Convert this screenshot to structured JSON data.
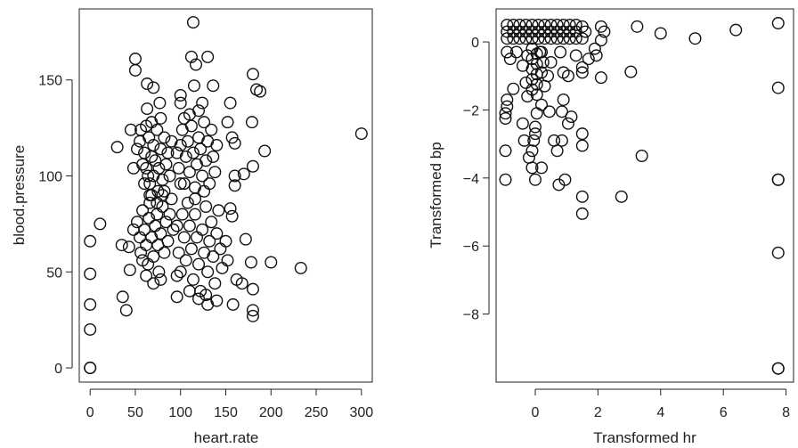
{
  "chart_data": [
    {
      "type": "scatter",
      "title": "",
      "xlabel": "heart.rate",
      "ylabel": "blood.pressure",
      "xlim": [
        -12,
        312
      ],
      "ylim": [
        -7.4,
        187
      ],
      "xticks": [
        0,
        50,
        100,
        150,
        200,
        250,
        300
      ],
      "xtick_labels": [
        "0",
        "50",
        "100",
        "150",
        "200",
        "250",
        "300"
      ],
      "yticks": [
        0,
        50,
        100,
        150
      ],
      "ytick_labels": [
        "0",
        "50",
        "100",
        "150"
      ],
      "grid": false,
      "marker": "open-circle",
      "points": [
        [
          55,
          118
        ],
        [
          60,
          112
        ],
        [
          62,
          104
        ],
        [
          65,
          120
        ],
        [
          66,
          96
        ],
        [
          68,
          110
        ],
        [
          70,
          100
        ],
        [
          70,
          116
        ],
        [
          72,
          108
        ],
        [
          74,
          124
        ],
        [
          75,
          92
        ],
        [
          76,
          104
        ],
        [
          78,
          114
        ],
        [
          80,
          98
        ],
        [
          82,
          120
        ],
        [
          84,
          106
        ],
        [
          86,
          112
        ],
        [
          64,
          100
        ],
        [
          58,
          106
        ],
        [
          56,
          124
        ],
        [
          62,
          126
        ],
        [
          68,
          128
        ],
        [
          78,
          130
        ],
        [
          88,
          100
        ],
        [
          90,
          118
        ],
        [
          66,
          90
        ],
        [
          74,
          86
        ],
        [
          82,
          92
        ],
        [
          52,
          114
        ],
        [
          60,
          96
        ],
        [
          98,
          104
        ],
        [
          100,
          116
        ],
        [
          102,
          124
        ],
        [
          104,
          96
        ],
        [
          106,
          110
        ],
        [
          108,
          118
        ],
        [
          110,
          102
        ],
        [
          112,
          126
        ],
        [
          114,
          112
        ],
        [
          116,
          94
        ],
        [
          118,
          106
        ],
        [
          120,
          120
        ],
        [
          122,
          114
        ],
        [
          124,
          100
        ],
        [
          126,
          128
        ],
        [
          128,
          108
        ],
        [
          130,
          118
        ],
        [
          132,
          96
        ],
        [
          134,
          124
        ],
        [
          136,
          110
        ],
        [
          110,
          132
        ],
        [
          120,
          134
        ],
        [
          104,
          130
        ],
        [
          116,
          88
        ],
        [
          126,
          92
        ],
        [
          138,
          102
        ],
        [
          140,
          116
        ],
        [
          100,
          96
        ],
        [
          96,
          112
        ],
        [
          124,
          138
        ],
        [
          52,
          76
        ],
        [
          55,
          68
        ],
        [
          56,
          60
        ],
        [
          58,
          82
        ],
        [
          60,
          72
        ],
        [
          62,
          64
        ],
        [
          64,
          54
        ],
        [
          65,
          78
        ],
        [
          66,
          86
        ],
        [
          68,
          68
        ],
        [
          70,
          58
        ],
        [
          72,
          74
        ],
        [
          74,
          80
        ],
        [
          75,
          64
        ],
        [
          76,
          50
        ],
        [
          78,
          70
        ],
        [
          80,
          84
        ],
        [
          82,
          60
        ],
        [
          84,
          76
        ],
        [
          86,
          66
        ],
        [
          88,
          80
        ],
        [
          62,
          48
        ],
        [
          70,
          44
        ],
        [
          78,
          46
        ],
        [
          90,
          88
        ],
        [
          92,
          72
        ],
        [
          58,
          56
        ],
        [
          48,
          72
        ],
        [
          80,
          90
        ],
        [
          68,
          90
        ],
        [
          96,
          74
        ],
        [
          98,
          60
        ],
        [
          100,
          50
        ],
        [
          102,
          80
        ],
        [
          104,
          68
        ],
        [
          106,
          56
        ],
        [
          108,
          86
        ],
        [
          110,
          74
        ],
        [
          112,
          62
        ],
        [
          114,
          46
        ],
        [
          116,
          80
        ],
        [
          118,
          68
        ],
        [
          120,
          54
        ],
        [
          122,
          40
        ],
        [
          124,
          72
        ],
        [
          126,
          60
        ],
        [
          128,
          84
        ],
        [
          130,
          50
        ],
        [
          132,
          66
        ],
        [
          134,
          76
        ],
        [
          136,
          58
        ],
        [
          138,
          44
        ],
        [
          140,
          70
        ],
        [
          142,
          82
        ],
        [
          144,
          62
        ],
        [
          110,
          40
        ],
        [
          120,
          36
        ],
        [
          128,
          38
        ],
        [
          146,
          52
        ],
        [
          96,
          48
        ],
        [
          150,
          66
        ],
        [
          152,
          56
        ],
        [
          0,
          0
        ],
        [
          0,
          0
        ],
        [
          0,
          20
        ],
        [
          0,
          33
        ],
        [
          0,
          49
        ],
        [
          0,
          66
        ],
        [
          11,
          75
        ],
        [
          30,
          115
        ],
        [
          35,
          64
        ],
        [
          36,
          37
        ],
        [
          40,
          30
        ],
        [
          50,
          161
        ],
        [
          50,
          155
        ],
        [
          63,
          148
        ],
        [
          70,
          146
        ],
        [
          77,
          138
        ],
        [
          114,
          180
        ],
        [
          112,
          162
        ],
        [
          130,
          162
        ],
        [
          117,
          158
        ],
        [
          180,
          153
        ],
        [
          184,
          145
        ],
        [
          188,
          144
        ],
        [
          179,
          128
        ],
        [
          193,
          113
        ],
        [
          180,
          105
        ],
        [
          300,
          122
        ],
        [
          200,
          55
        ],
        [
          233,
          52
        ],
        [
          180,
          41
        ],
        [
          180,
          30
        ],
        [
          180,
          27
        ],
        [
          172,
          67
        ],
        [
          178,
          55
        ],
        [
          160,
          100
        ],
        [
          160,
          95
        ],
        [
          170,
          101
        ],
        [
          157,
          120
        ],
        [
          160,
          117
        ],
        [
          155,
          138
        ],
        [
          152,
          128
        ],
        [
          136,
          147
        ],
        [
          100,
          142
        ],
        [
          96,
          37
        ],
        [
          130,
          33
        ],
        [
          140,
          35
        ],
        [
          158,
          33
        ],
        [
          162,
          46
        ],
        [
          168,
          44
        ],
        [
          155,
          83
        ],
        [
          157,
          79
        ],
        [
          44,
          51
        ],
        [
          43,
          63
        ],
        [
          45,
          124
        ],
        [
          48,
          104
        ],
        [
          100,
          138
        ],
        [
          115,
          147
        ],
        [
          63,
          135
        ]
      ]
    },
    {
      "type": "scatter",
      "title": "",
      "xlabel": "Transformed hr",
      "ylabel": "Transformed bp",
      "xlim": [
        -1.25,
        8.24
      ],
      "ylim": [
        -10.0,
        0.97
      ],
      "xticks": [
        0,
        2,
        4,
        6,
        8
      ],
      "xtick_labels": [
        "0",
        "2",
        "4",
        "6",
        "8"
      ],
      "yticks": [
        0,
        -2,
        -4,
        -6,
        -8
      ],
      "ytick_labels": [
        "0",
        "−2",
        "−4",
        "−6",
        "−8"
      ],
      "grid": false,
      "marker": "open-circle",
      "points": [
        [
          -0.9,
          0.5
        ],
        [
          -0.7,
          0.5
        ],
        [
          -0.5,
          0.5
        ],
        [
          -0.3,
          0.5
        ],
        [
          -0.1,
          0.5
        ],
        [
          0.1,
          0.5
        ],
        [
          0.3,
          0.5
        ],
        [
          0.5,
          0.5
        ],
        [
          0.7,
          0.5
        ],
        [
          0.9,
          0.5
        ],
        [
          1.1,
          0.5
        ],
        [
          1.3,
          0.5
        ],
        [
          1.5,
          0.45
        ],
        [
          -0.9,
          0.3
        ],
        [
          -0.7,
          0.3
        ],
        [
          -0.5,
          0.3
        ],
        [
          -0.3,
          0.3
        ],
        [
          -0.1,
          0.3
        ],
        [
          0.1,
          0.3
        ],
        [
          0.3,
          0.3
        ],
        [
          0.5,
          0.3
        ],
        [
          0.7,
          0.3
        ],
        [
          0.9,
          0.3
        ],
        [
          1.1,
          0.3
        ],
        [
          1.3,
          0.3
        ],
        [
          1.6,
          0.3
        ],
        [
          -0.9,
          0.1
        ],
        [
          -0.7,
          0.1
        ],
        [
          -0.5,
          0.1
        ],
        [
          -0.3,
          0.1
        ],
        [
          -0.1,
          0.1
        ],
        [
          0.1,
          0.1
        ],
        [
          0.3,
          0.1
        ],
        [
          0.5,
          0.1
        ],
        [
          0.7,
          0.1
        ],
        [
          0.9,
          0.1
        ],
        [
          1.1,
          0.1
        ],
        [
          1.3,
          0.1
        ],
        [
          1.5,
          0.1
        ],
        [
          -0.1,
          -0.2
        ],
        [
          0.05,
          -0.35
        ],
        [
          -0.1,
          -0.5
        ],
        [
          0.05,
          -0.65
        ],
        [
          -0.1,
          -0.8
        ],
        [
          0.05,
          -0.95
        ],
        [
          -0.1,
          -1.1
        ],
        [
          0.05,
          -1.25
        ],
        [
          -0.1,
          -1.4
        ],
        [
          0.05,
          -1.55
        ],
        [
          0.15,
          -0.3
        ],
        [
          0.25,
          -0.6
        ],
        [
          -0.25,
          -0.4
        ],
        [
          0.2,
          -0.9
        ],
        [
          -0.9,
          -0.3
        ],
        [
          -0.8,
          -0.5
        ],
        [
          -0.6,
          -0.3
        ],
        [
          -0.7,
          -1.38
        ],
        [
          -0.9,
          -1.7
        ],
        [
          -0.9,
          -1.9
        ],
        [
          -0.95,
          -2.1
        ],
        [
          -0.95,
          -2.25
        ],
        [
          -0.95,
          -3.2
        ],
        [
          -0.95,
          -4.05
        ],
        [
          -0.4,
          -2.4
        ],
        [
          -0.35,
          -2.9
        ],
        [
          -0.2,
          -3.4
        ],
        [
          -0.1,
          -3.7
        ],
        [
          0.2,
          -3.7
        ],
        [
          0,
          -4.05
        ],
        [
          -0.1,
          -3.2
        ],
        [
          0,
          -2.5
        ],
        [
          0,
          -2.7
        ],
        [
          -0.05,
          -2.9
        ],
        [
          0.05,
          -2.1
        ],
        [
          0.2,
          -1.85
        ],
        [
          0.45,
          -2.05
        ],
        [
          0.6,
          -2.9
        ],
        [
          0.7,
          -3.2
        ],
        [
          0.85,
          -2.9
        ],
        [
          0.85,
          -2.05
        ],
        [
          0.9,
          -1.7
        ],
        [
          1.05,
          -2.4
        ],
        [
          1.15,
          -2.2
        ],
        [
          1.5,
          -2.7
        ],
        [
          1.5,
          -3.05
        ],
        [
          0.75,
          -4.2
        ],
        [
          0.95,
          -4.05
        ],
        [
          1.5,
          -4.55
        ],
        [
          1.5,
          -5.05
        ],
        [
          2.75,
          -4.55
        ],
        [
          3.4,
          -3.35
        ],
        [
          3.05,
          -0.88
        ],
        [
          2.1,
          -1.05
        ],
        [
          1.05,
          -1.0
        ],
        [
          0.9,
          -0.9
        ],
        [
          1.5,
          -0.9
        ],
        [
          1.5,
          -0.75
        ],
        [
          1.7,
          -0.5
        ],
        [
          1.95,
          -0.4
        ],
        [
          1.9,
          -0.2
        ],
        [
          2.1,
          0.05
        ],
        [
          2.2,
          0.3
        ],
        [
          2.1,
          0.45
        ],
        [
          3.25,
          0.45
        ],
        [
          4.0,
          0.25
        ],
        [
          5.1,
          0.1
        ],
        [
          6.4,
          0.35
        ],
        [
          7.75,
          0.55
        ],
        [
          7.75,
          -1.35
        ],
        [
          7.75,
          -4.05
        ],
        [
          7.75,
          -4.05
        ],
        [
          7.75,
          -6.2
        ],
        [
          7.75,
          -9.6
        ],
        [
          7.75,
          -9.6
        ],
        [
          0.4,
          -1.0
        ],
        [
          0.3,
          -1.3
        ],
        [
          -0.3,
          -1.2
        ],
        [
          -0.25,
          -1.6
        ],
        [
          0.5,
          -0.6
        ],
        [
          -0.4,
          -0.7
        ],
        [
          1.3,
          -0.4
        ],
        [
          0.8,
          -0.3
        ],
        [
          0.2,
          -0.3
        ]
      ]
    }
  ]
}
